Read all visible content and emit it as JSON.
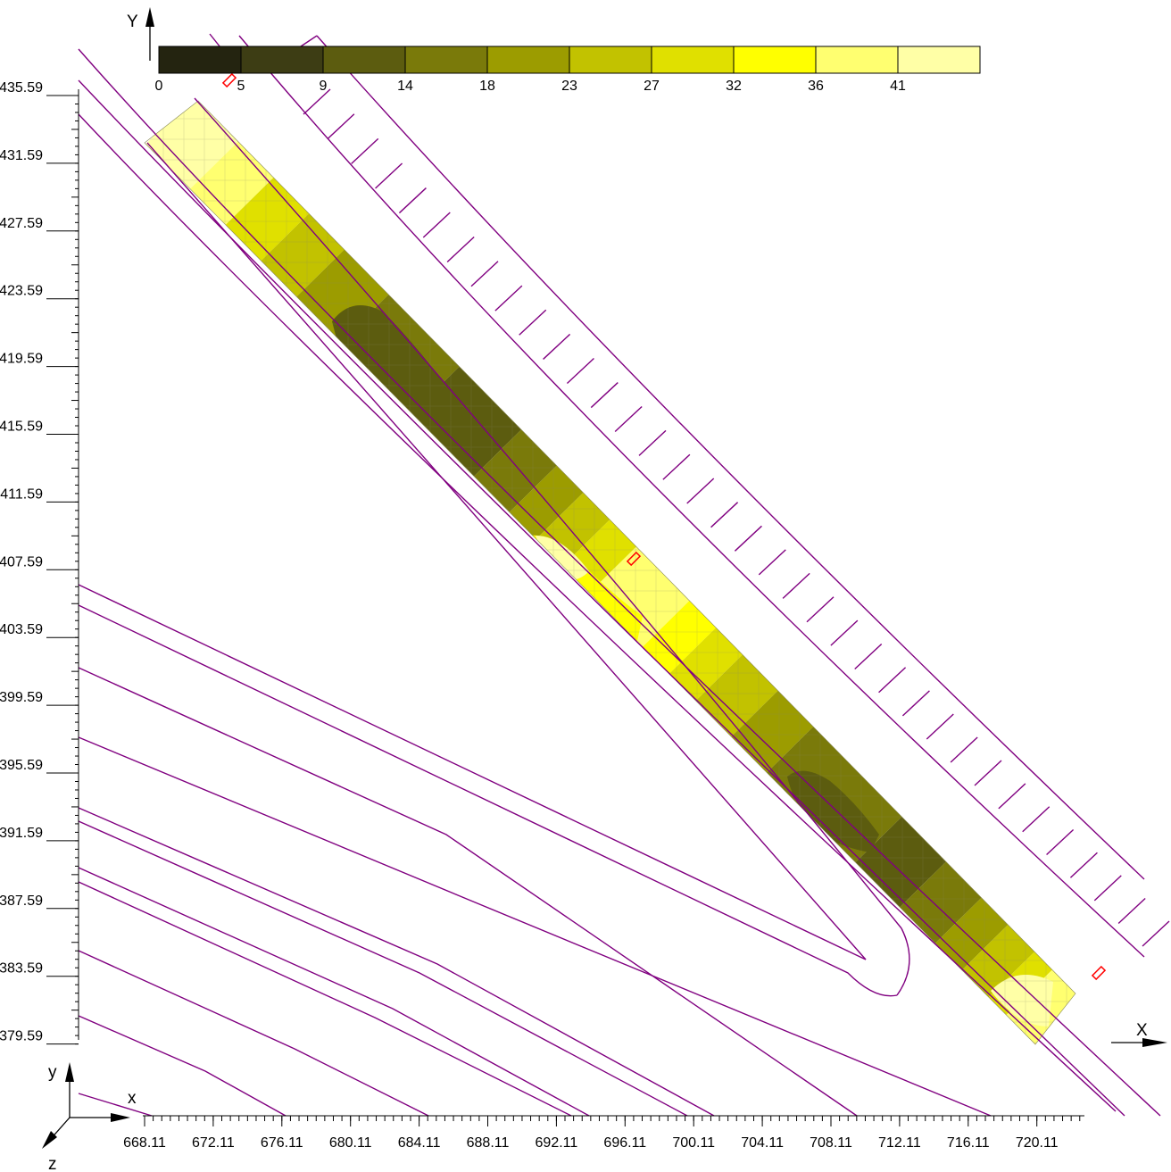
{
  "legend": {
    "labels": [
      "0",
      "5",
      "9",
      "14",
      "18",
      "23",
      "27",
      "32",
      "36",
      "41"
    ],
    "colors": [
      "#242410",
      "#3d3d14",
      "#5c5c0f",
      "#7a7a0a",
      "#9c9c00",
      "#c2c200",
      "#e0e000",
      "#ffff00",
      "#ffff70",
      "#ffffa6"
    ]
  },
  "axes": {
    "y_label": "Y",
    "x_label": "X",
    "y_ticks": [
      "435.59",
      "431.59",
      "427.59",
      "423.59",
      "419.59",
      "415.59",
      "411.59",
      "407.59",
      "403.59",
      "399.59",
      "395.59",
      "391.59",
      "387.59",
      "383.59",
      "379.59"
    ],
    "x_ticks": [
      "668.11",
      "672.11",
      "676.11",
      "680.11",
      "684.11",
      "688.11",
      "692.11",
      "696.11",
      "700.11",
      "704.11",
      "708.11",
      "712.11",
      "716.11",
      "720.11"
    ]
  },
  "triad": {
    "x": "x",
    "y": "y",
    "z": "z"
  },
  "colors": {
    "road_lines": "#800080",
    "markers": "#ff0000"
  }
}
